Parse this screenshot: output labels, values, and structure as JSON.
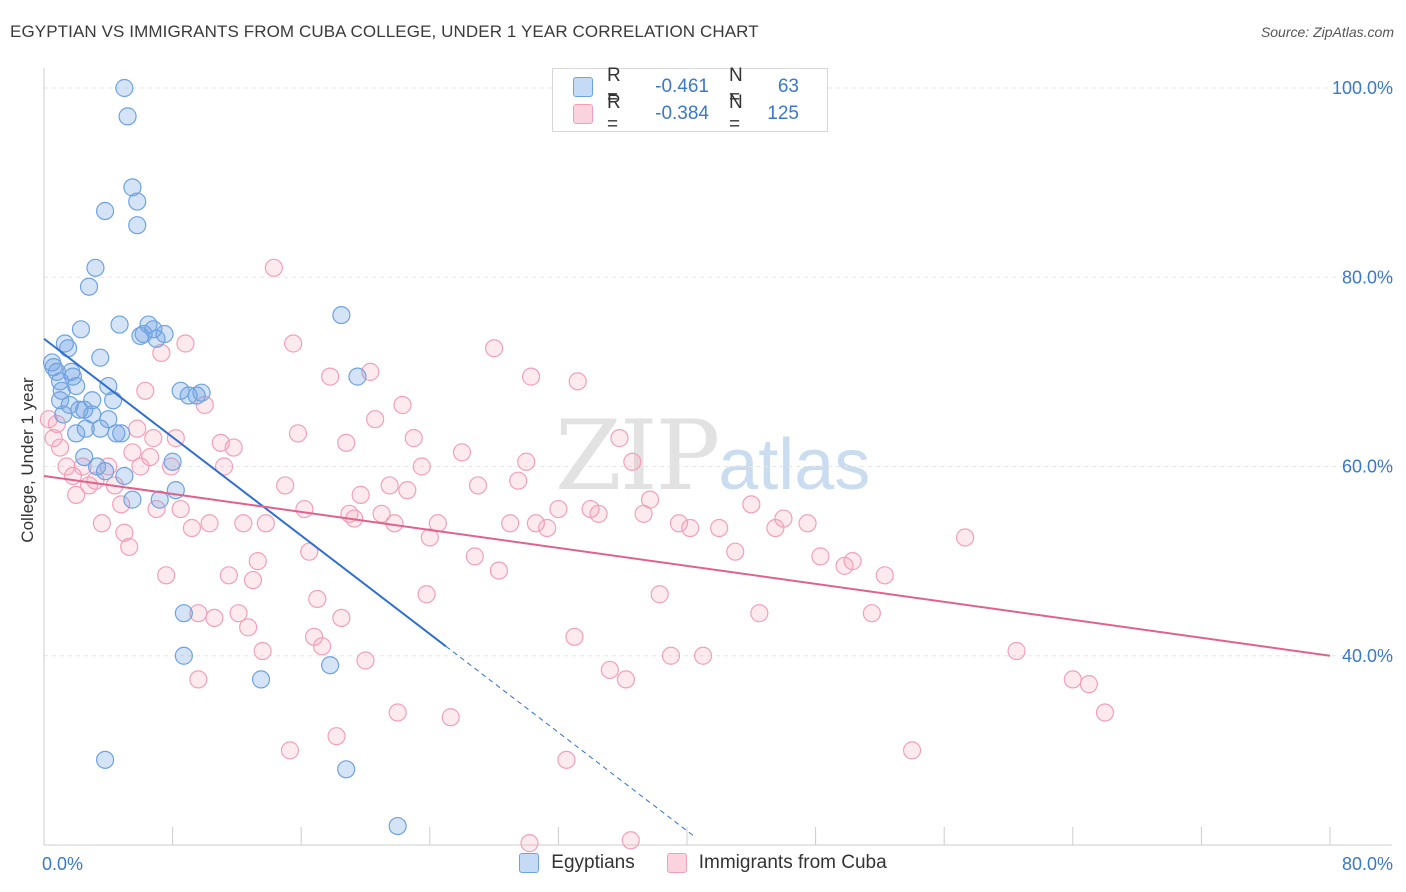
{
  "title": "EGYPTIAN VS IMMIGRANTS FROM CUBA COLLEGE, UNDER 1 YEAR CORRELATION CHART",
  "source": "Source: ZipAtlas.com",
  "watermark": {
    "a": "ZIP",
    "b": "atlas"
  },
  "legend": {
    "r_label": "R =",
    "n_label": "N =",
    "rows": [
      {
        "r": "-0.461",
        "n": "63",
        "color": "#6fa3e0"
      },
      {
        "r": "-0.384",
        "n": "125",
        "color": "#f2a0b8"
      }
    ]
  },
  "bottom_legend": [
    {
      "label": "Egyptians",
      "color": "#6fa3e0"
    },
    {
      "label": "Immigrants from Cuba",
      "color": "#f2a0b8"
    }
  ],
  "chart_data": {
    "type": "scatter",
    "ylabel": "College, Under 1 year",
    "xlim": [
      0,
      80
    ],
    "ylim": [
      20,
      100
    ],
    "x_tick_labels": [
      "0.0%",
      "80.0%"
    ],
    "y_ticks": [
      40,
      60,
      80,
      100
    ],
    "y_tick_labels": [
      "40.0%",
      "60.0%",
      "80.0%",
      "100.0%"
    ],
    "grid": true,
    "series": [
      {
        "name": "Egyptians",
        "color": "#6fa3e0",
        "line_color": "#2f6fd0",
        "trend": {
          "x0": 0,
          "y0": 73.5,
          "x1": 25,
          "y1": 41,
          "dash_to_x": 40.5
        },
        "points": [
          [
            0.5,
            71
          ],
          [
            0.8,
            70
          ],
          [
            1.0,
            69
          ],
          [
            1.3,
            73
          ],
          [
            1.5,
            72.5
          ],
          [
            1.7,
            70
          ],
          [
            2.0,
            68.5
          ],
          [
            2.3,
            74.5
          ],
          [
            2.5,
            66
          ],
          [
            2.8,
            79
          ],
          [
            3.0,
            65.5
          ],
          [
            3.2,
            81
          ],
          [
            3.5,
            71.5
          ],
          [
            3.8,
            87
          ],
          [
            4.0,
            65
          ],
          [
            4.3,
            67
          ],
          [
            4.5,
            63.5
          ],
          [
            4.7,
            75
          ],
          [
            5.0,
            100
          ],
          [
            5.2,
            97
          ],
          [
            5.5,
            89.5
          ],
          [
            5.8,
            88
          ],
          [
            5.8,
            85.5
          ],
          [
            6.2,
            74
          ],
          [
            6.5,
            75
          ],
          [
            6.8,
            74.5
          ],
          [
            7.0,
            73.5
          ],
          [
            7.2,
            56.5
          ],
          [
            8.0,
            60.5
          ],
          [
            8.5,
            68
          ],
          [
            9.0,
            67.5
          ],
          [
            2.0,
            63.5
          ],
          [
            1.0,
            67
          ],
          [
            1.2,
            65.5
          ],
          [
            2.5,
            61
          ],
          [
            3.3,
            60
          ],
          [
            3.8,
            59.5
          ],
          [
            4.8,
            63.5
          ],
          [
            5.0,
            59
          ],
          [
            5.5,
            56.5
          ],
          [
            1.8,
            69.5
          ],
          [
            2.2,
            66
          ],
          [
            3.0,
            67
          ],
          [
            4.0,
            68.5
          ],
          [
            8.2,
            57.5
          ],
          [
            8.7,
            44.5
          ],
          [
            8.7,
            40
          ],
          [
            13.5,
            37.5
          ],
          [
            17.8,
            39
          ],
          [
            18.5,
            76
          ],
          [
            19.5,
            69.5
          ],
          [
            18.8,
            28
          ],
          [
            22.0,
            22
          ],
          [
            3.8,
            29
          ],
          [
            9.5,
            67.5
          ],
          [
            3.5,
            64
          ],
          [
            0.6,
            70.5
          ],
          [
            1.1,
            68
          ],
          [
            1.6,
            66.5
          ],
          [
            2.6,
            64
          ],
          [
            7.5,
            74
          ],
          [
            6.0,
            73.8
          ],
          [
            9.8,
            67.8
          ]
        ]
      },
      {
        "name": "Immigrants from Cuba",
        "color": "#f2a0b8",
        "line_color": "#e0628c",
        "trend": {
          "x0": 0,
          "y0": 59,
          "x1": 80,
          "y1": 40
        },
        "points": [
          [
            0.3,
            65
          ],
          [
            0.6,
            63
          ],
          [
            1.0,
            62
          ],
          [
            1.4,
            60
          ],
          [
            1.8,
            59
          ],
          [
            2.0,
            57
          ],
          [
            2.4,
            60
          ],
          [
            2.8,
            58
          ],
          [
            3.2,
            58.5
          ],
          [
            3.6,
            54
          ],
          [
            4.0,
            60
          ],
          [
            4.4,
            58
          ],
          [
            4.8,
            56
          ],
          [
            5.0,
            53
          ],
          [
            5.3,
            51.5
          ],
          [
            5.5,
            61.5
          ],
          [
            5.8,
            64
          ],
          [
            6.0,
            60
          ],
          [
            6.3,
            68
          ],
          [
            6.6,
            61
          ],
          [
            6.8,
            63
          ],
          [
            7.0,
            55.5
          ],
          [
            7.3,
            72
          ],
          [
            7.6,
            48.5
          ],
          [
            7.9,
            60
          ],
          [
            8.2,
            63
          ],
          [
            8.5,
            55.5
          ],
          [
            8.8,
            73
          ],
          [
            9.2,
            53.5
          ],
          [
            9.6,
            44.5
          ],
          [
            9.6,
            37.5
          ],
          [
            10.0,
            66.5
          ],
          [
            10.3,
            54
          ],
          [
            10.6,
            44
          ],
          [
            11.0,
            62.5
          ],
          [
            11.2,
            60
          ],
          [
            11.5,
            48.5
          ],
          [
            11.8,
            62
          ],
          [
            12.1,
            44.5
          ],
          [
            12.4,
            54
          ],
          [
            12.7,
            43
          ],
          [
            13.0,
            48
          ],
          [
            13.3,
            50
          ],
          [
            13.6,
            40.5
          ],
          [
            13.8,
            54
          ],
          [
            14.3,
            81
          ],
          [
            15.0,
            58
          ],
          [
            15.3,
            30
          ],
          [
            15.5,
            73
          ],
          [
            15.8,
            63.5
          ],
          [
            16.2,
            55.5
          ],
          [
            16.5,
            51
          ],
          [
            16.8,
            42
          ],
          [
            17.0,
            46
          ],
          [
            17.3,
            41
          ],
          [
            17.8,
            69.5
          ],
          [
            18.2,
            31.5
          ],
          [
            18.5,
            44
          ],
          [
            18.8,
            62.5
          ],
          [
            19.0,
            55
          ],
          [
            19.3,
            54.5
          ],
          [
            19.7,
            57
          ],
          [
            20.0,
            39.5
          ],
          [
            20.3,
            70
          ],
          [
            20.6,
            65
          ],
          [
            21.0,
            55
          ],
          [
            21.5,
            58
          ],
          [
            21.8,
            54
          ],
          [
            22.0,
            34
          ],
          [
            22.3,
            66.5
          ],
          [
            22.6,
            57.5
          ],
          [
            23.0,
            63
          ],
          [
            23.5,
            60
          ],
          [
            23.8,
            46.5
          ],
          [
            24.0,
            52.5
          ],
          [
            24.5,
            54
          ],
          [
            25.3,
            33.5
          ],
          [
            26.0,
            61.5
          ],
          [
            26.8,
            50.5
          ],
          [
            27.0,
            58
          ],
          [
            28.0,
            72.5
          ],
          [
            28.3,
            49
          ],
          [
            29.0,
            54
          ],
          [
            29.5,
            58.5
          ],
          [
            30.0,
            60.5
          ],
          [
            30.3,
            69.5
          ],
          [
            30.6,
            54
          ],
          [
            31.3,
            53.5
          ],
          [
            32.0,
            55.5
          ],
          [
            32.5,
            29
          ],
          [
            33.0,
            42
          ],
          [
            33.2,
            69
          ],
          [
            34.0,
            55.5
          ],
          [
            34.5,
            55
          ],
          [
            35.2,
            38.5
          ],
          [
            35.8,
            63
          ],
          [
            36.2,
            37.5
          ],
          [
            36.6,
            60.5
          ],
          [
            37.3,
            55
          ],
          [
            37.7,
            56.5
          ],
          [
            38.3,
            46.5
          ],
          [
            39.0,
            40
          ],
          [
            39.5,
            54
          ],
          [
            40.2,
            53.5
          ],
          [
            41.0,
            40
          ],
          [
            42.0,
            53.5
          ],
          [
            43.0,
            51
          ],
          [
            44.0,
            56
          ],
          [
            44.5,
            44.5
          ],
          [
            45.5,
            53.5
          ],
          [
            46.0,
            54.5
          ],
          [
            47.5,
            54
          ],
          [
            48.3,
            50.5
          ],
          [
            49.8,
            49.5
          ],
          [
            50.3,
            50
          ],
          [
            51.5,
            44.5
          ],
          [
            52.3,
            48.5
          ],
          [
            54.0,
            30
          ],
          [
            57.3,
            52.5
          ],
          [
            60.5,
            40.5
          ],
          [
            64.0,
            37.5
          ],
          [
            65.0,
            37
          ],
          [
            66.0,
            34
          ],
          [
            36.5,
            20.5
          ],
          [
            30.2,
            20.2
          ],
          [
            0.8,
            64.5
          ]
        ]
      }
    ]
  }
}
